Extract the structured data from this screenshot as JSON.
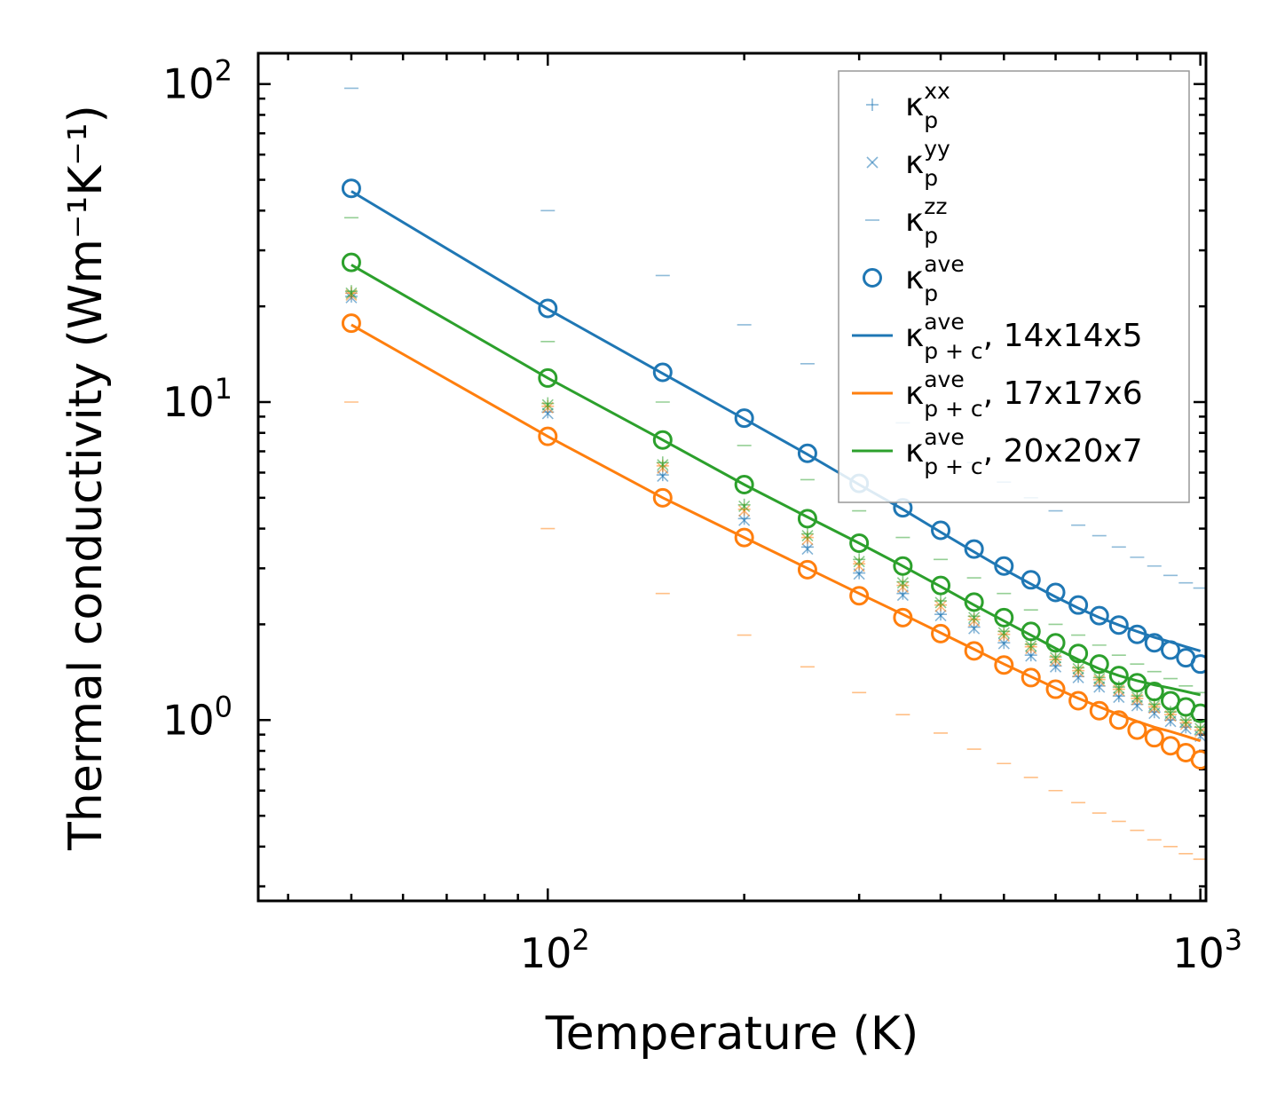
{
  "colors": {
    "blue": "#1f77b4",
    "orange": "#ff7f0e",
    "green": "#2ca02c",
    "axis": "#000000",
    "legend_border": "#999999"
  },
  "chart_data": {
    "type": "scatter",
    "xscale": "log",
    "yscale": "log",
    "xlabel": "Temperature (K)",
    "ylabel": "Thermal conductivity (Wm⁻¹K⁻¹)",
    "xlim": [
      36,
      1020
    ],
    "ylim": [
      0.27,
      125
    ],
    "x_ticks": [
      {
        "base": "10",
        "exp": "2"
      },
      {
        "base": "10",
        "exp": "3"
      }
    ],
    "y_ticks": [
      {
        "base": "10",
        "exp": "0"
      },
      {
        "base": "10",
        "exp": "1"
      },
      {
        "base": "10",
        "exp": "2"
      }
    ],
    "legend": {
      "position": "upper right",
      "entries": [
        {
          "marker": "+",
          "color": "blue",
          "sym": "κ",
          "sup": "xx",
          "sub": "p",
          "suffix": ""
        },
        {
          "marker": "x",
          "color": "blue",
          "sym": "κ",
          "sup": "yy",
          "sub": "p",
          "suffix": ""
        },
        {
          "marker": "_",
          "color": "blue",
          "sym": "κ",
          "sup": "zz",
          "sub": "p",
          "suffix": ""
        },
        {
          "marker": "o",
          "color": "blue",
          "sym": "κ",
          "sup": "ave",
          "sub": "p",
          "suffix": ""
        },
        {
          "marker": "line",
          "color": "blue",
          "sym": "κ",
          "sup": "ave",
          "sub": "p + c",
          "suffix": ", 14x14x5"
        },
        {
          "marker": "line",
          "color": "orange",
          "sym": "κ",
          "sup": "ave",
          "sub": "p + c",
          "suffix": ", 17x17x6"
        },
        {
          "marker": "line",
          "color": "green",
          "sym": "κ",
          "sup": "ave",
          "sub": "p + c",
          "suffix": ", 20x20x7"
        }
      ]
    },
    "x": [
      50,
      100,
      150,
      200,
      250,
      300,
      350,
      400,
      450,
      500,
      550,
      600,
      650,
      700,
      750,
      800,
      850,
      900,
      950,
      1000
    ],
    "series": [
      {
        "name": "14x14x5",
        "color": "blue",
        "ave": [
          47,
          19.7,
          12.4,
          8.9,
          6.9,
          5.55,
          4.65,
          3.95,
          3.45,
          3.05,
          2.76,
          2.52,
          2.3,
          2.13,
          1.99,
          1.86,
          1.75,
          1.66,
          1.57,
          1.5
        ],
        "xx": [
          21.5,
          9.3,
          5.9,
          4.3,
          3.5,
          2.9,
          2.5,
          2.15,
          1.96,
          1.75,
          1.6,
          1.48,
          1.37,
          1.28,
          1.19,
          1.12,
          1.06,
          1.0,
          0.95,
          0.9
        ],
        "yy": [
          21.3,
          9.2,
          5.85,
          4.25,
          3.45,
          2.88,
          2.47,
          2.13,
          1.94,
          1.74,
          1.59,
          1.47,
          1.36,
          1.27,
          1.18,
          1.11,
          1.05,
          0.99,
          0.94,
          0.89
        ],
        "zz": [
          97,
          40,
          25,
          17.5,
          13.2,
          10.6,
          8.6,
          7.4,
          6.45,
          5.6,
          5.0,
          4.55,
          4.1,
          3.8,
          3.5,
          3.25,
          3.05,
          2.85,
          2.7,
          2.6
        ],
        "fit": [
          46,
          19.6,
          12.3,
          8.85,
          6.85,
          5.5,
          4.6,
          3.9,
          3.38,
          2.98,
          2.68,
          2.44,
          2.25,
          2.1,
          1.99,
          1.9,
          1.82,
          1.76,
          1.7,
          1.65
        ]
      },
      {
        "name": "17x17x6",
        "color": "orange",
        "ave": [
          17.7,
          7.8,
          5.0,
          3.75,
          2.97,
          2.46,
          2.1,
          1.87,
          1.65,
          1.49,
          1.36,
          1.25,
          1.15,
          1.07,
          1.0,
          0.93,
          0.88,
          0.83,
          0.79,
          0.75
        ],
        "xx": [
          22,
          9.7,
          6.3,
          4.6,
          3.75,
          3.1,
          2.65,
          2.3,
          2.07,
          1.86,
          1.7,
          1.55,
          1.43,
          1.34,
          1.25,
          1.17,
          1.1,
          1.04,
          0.98,
          0.93
        ],
        "yy": [
          21.7,
          9.6,
          6.2,
          4.55,
          3.7,
          3.05,
          2.62,
          2.28,
          2.05,
          1.84,
          1.68,
          1.54,
          1.42,
          1.33,
          1.24,
          1.16,
          1.09,
          1.03,
          0.97,
          0.92
        ],
        "zz": [
          10,
          4.0,
          2.5,
          1.85,
          1.47,
          1.22,
          1.04,
          0.91,
          0.81,
          0.73,
          0.66,
          0.6,
          0.55,
          0.51,
          0.48,
          0.45,
          0.42,
          0.4,
          0.38,
          0.365
        ],
        "fit": [
          17.5,
          7.8,
          5.0,
          3.75,
          3.0,
          2.5,
          2.15,
          1.88,
          1.67,
          1.5,
          1.37,
          1.26,
          1.17,
          1.1,
          1.04,
          0.99,
          0.95,
          0.92,
          0.89,
          0.86
        ]
      },
      {
        "name": "20x20x7",
        "color": "green",
        "ave": [
          27.5,
          11.9,
          7.6,
          5.5,
          4.3,
          3.6,
          3.05,
          2.65,
          2.35,
          2.1,
          1.9,
          1.75,
          1.62,
          1.5,
          1.38,
          1.31,
          1.23,
          1.15,
          1.1,
          1.05
        ],
        "xx": [
          22.3,
          9.9,
          6.45,
          4.75,
          3.85,
          3.2,
          2.72,
          2.37,
          2.12,
          1.9,
          1.73,
          1.58,
          1.46,
          1.36,
          1.27,
          1.19,
          1.12,
          1.06,
          1.0,
          0.95
        ],
        "yy": [
          22.0,
          9.8,
          6.35,
          4.7,
          3.8,
          3.15,
          2.7,
          2.34,
          2.1,
          1.88,
          1.71,
          1.57,
          1.45,
          1.35,
          1.26,
          1.18,
          1.11,
          1.05,
          0.99,
          0.94
        ],
        "zz": [
          38,
          15.5,
          10,
          7.3,
          5.7,
          4.55,
          3.75,
          3.2,
          2.8,
          2.5,
          2.22,
          2.0,
          1.85,
          1.72,
          1.6,
          1.5,
          1.42,
          1.35,
          1.28,
          1.22
        ],
        "fit": [
          27.0,
          11.9,
          7.6,
          5.5,
          4.35,
          3.6,
          3.05,
          2.63,
          2.3,
          2.05,
          1.85,
          1.68,
          1.55,
          1.45,
          1.38,
          1.33,
          1.29,
          1.26,
          1.23,
          1.2
        ]
      }
    ]
  }
}
